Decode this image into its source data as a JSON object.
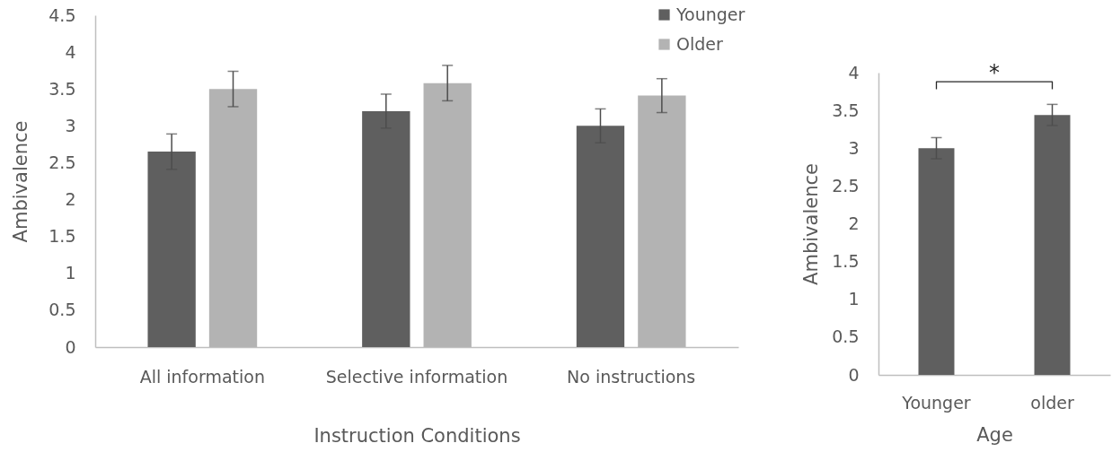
{
  "chart_data": [
    {
      "type": "bar",
      "xlabel": "Instruction Conditions",
      "ylabel": "Ambivalence",
      "categories": [
        "All information",
        "Selective information",
        "No instructions"
      ],
      "series": [
        {
          "name": "Younger",
          "color": "#5f5f5f",
          "values": [
            2.65,
            3.2,
            3.0
          ],
          "errors": [
            0.24,
            0.23,
            0.23
          ]
        },
        {
          "name": "Older",
          "color": "#b3b3b3",
          "values": [
            3.5,
            3.58,
            3.41
          ],
          "errors": [
            0.24,
            0.24,
            0.23
          ]
        }
      ],
      "ylim": [
        0,
        4.5
      ],
      "yticks": [
        0,
        0.5,
        1,
        1.5,
        2,
        2.5,
        3,
        3.5,
        4,
        4.5
      ],
      "legend": "top right",
      "grid": false
    },
    {
      "type": "bar",
      "xlabel": "Age",
      "ylabel": "Ambivalence",
      "categories": [
        "Younger",
        "older"
      ],
      "values": [
        3.0,
        3.44
      ],
      "color": "#5f5f5f",
      "errors": [
        0.14,
        0.14
      ],
      "ylim": [
        0,
        4
      ],
      "yticks": [
        0,
        0.5,
        1,
        1.5,
        2,
        2.5,
        3,
        3.5,
        4
      ],
      "annotations": [
        "*"
      ],
      "grid": false
    }
  ]
}
